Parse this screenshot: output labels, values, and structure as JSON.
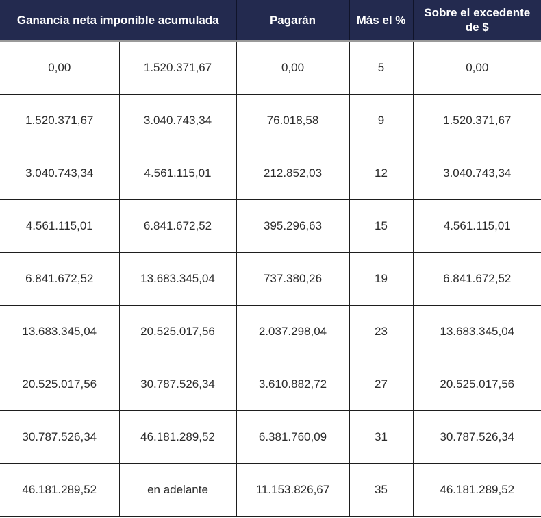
{
  "table": {
    "headers": {
      "ganancia": "Ganancia neta imponible acumulada",
      "pagaran": "Pagarán",
      "mas_el_pct": "Más el %",
      "sobre_excedente": "Sobre el excedente de $"
    },
    "rows": [
      {
        "desde": "0,00",
        "hasta": "1.520.371,67",
        "pagaran": "0,00",
        "pct": "5",
        "excedente": "0,00"
      },
      {
        "desde": "1.520.371,67",
        "hasta": "3.040.743,34",
        "pagaran": "76.018,58",
        "pct": "9",
        "excedente": "1.520.371,67"
      },
      {
        "desde": "3.040.743,34",
        "hasta": "4.561.115,01",
        "pagaran": "212.852,03",
        "pct": "12",
        "excedente": "3.040.743,34"
      },
      {
        "desde": "4.561.115,01",
        "hasta": "6.841.672,52",
        "pagaran": "395.296,63",
        "pct": "15",
        "excedente": "4.561.115,01"
      },
      {
        "desde": "6.841.672,52",
        "hasta": "13.683.345,04",
        "pagaran": "737.380,26",
        "pct": "19",
        "excedente": "6.841.672,52"
      },
      {
        "desde": "13.683.345,04",
        "hasta": "20.525.017,56",
        "pagaran": "2.037.298,04",
        "pct": "23",
        "excedente": "13.683.345,04"
      },
      {
        "desde": "20.525.017,56",
        "hasta": "30.787.526,34",
        "pagaran": "3.610.882,72",
        "pct": "27",
        "excedente": "20.525.017,56"
      },
      {
        "desde": "30.787.526,34",
        "hasta": "46.181.289,52",
        "pagaran": "6.381.760,09",
        "pct": "31",
        "excedente": "30.787.526,34"
      },
      {
        "desde": "46.181.289,52",
        "hasta": "en adelante",
        "pagaran": "11.153.826,67",
        "pct": "35",
        "excedente": "46.181.289,52"
      }
    ]
  },
  "colors": {
    "header_bg": "#232a4f",
    "header_text": "#ffffff",
    "cell_text": "#2b2b2b",
    "border": "#1e1e1e"
  }
}
